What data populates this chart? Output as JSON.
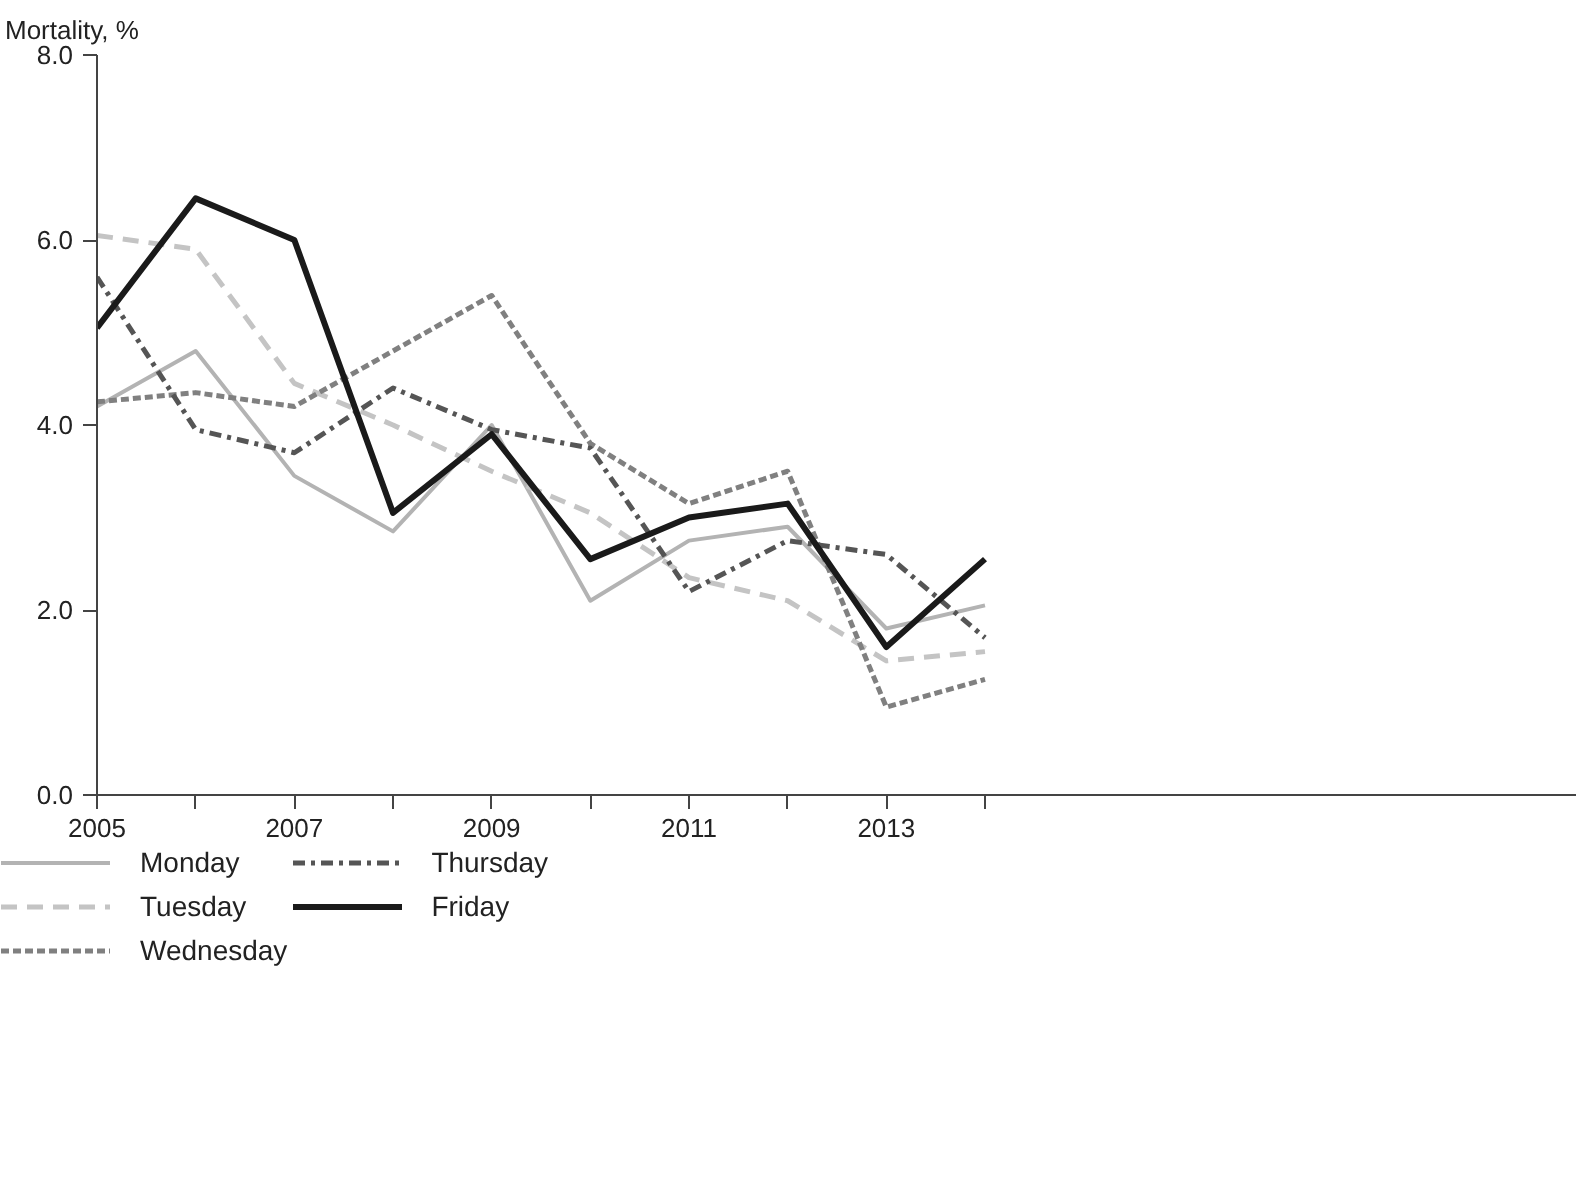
{
  "chart_data": {
    "type": "line",
    "ylabel": "Mortality, %",
    "x": [
      2005,
      2006,
      2007,
      2008,
      2009,
      2010,
      2011,
      2012,
      2013,
      2014
    ],
    "xlim": [
      2005,
      2020
    ],
    "xticks": [
      2005,
      {
        "value": 2006,
        "label": null
      },
      2007,
      {
        "value": 2008,
        "label": null
      },
      2009,
      {
        "value": 2010,
        "label": null
      },
      2011,
      {
        "value": 2012,
        "label": null
      },
      2013,
      {
        "value": 2014,
        "label": null
      }
    ],
    "ylim": [
      0,
      8
    ],
    "yticks": [
      {
        "value": 0,
        "label": "0.0"
      },
      {
        "value": 2,
        "label": "2.0"
      },
      {
        "value": 4,
        "label": "4.0"
      },
      {
        "value": 6,
        "label": "6.0"
      },
      {
        "value": 8,
        "label": "8.0"
      }
    ],
    "grid": false,
    "legend": "bottom",
    "marker": "none",
    "series": [
      {
        "name": "Monday",
        "color": "#b3b3b3",
        "line_style": "solid",
        "values": [
          4.2,
          4.8,
          3.45,
          2.85,
          4.0,
          2.1,
          2.75,
          2.9,
          1.8,
          2.05
        ]
      },
      {
        "name": "Tuesday",
        "color": "#c4c4c4",
        "line_style": "dashed",
        "values": [
          6.05,
          5.9,
          4.45,
          4.0,
          3.5,
          3.05,
          2.35,
          2.1,
          1.45,
          1.55
        ]
      },
      {
        "name": "Wednesday",
        "color": "#808080",
        "line_style": "dotted",
        "values": [
          4.25,
          4.35,
          4.2,
          4.8,
          5.4,
          3.8,
          3.15,
          3.5,
          0.95,
          1.25
        ]
      },
      {
        "name": "Thursday",
        "color": "#555555",
        "line_style": "dashdot",
        "values": [
          5.6,
          3.95,
          3.7,
          4.4,
          3.95,
          3.75,
          2.2,
          2.75,
          2.6,
          1.7
        ]
      },
      {
        "name": "Friday",
        "color": "#1a1a1a",
        "line_style": "solid",
        "values": [
          5.05,
          6.45,
          6.0,
          3.05,
          3.9,
          2.55,
          3.0,
          3.15,
          1.6,
          2.55
        ]
      }
    ]
  }
}
